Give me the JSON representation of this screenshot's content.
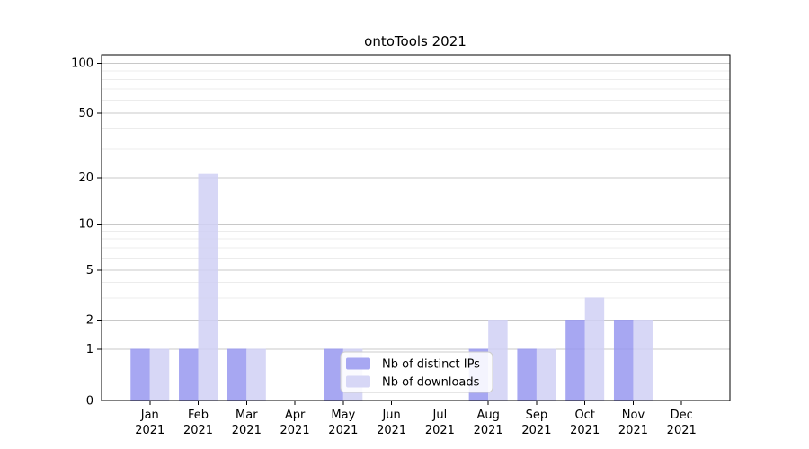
{
  "chart_data": {
    "type": "bar",
    "title": "ontoTools 2021",
    "categories": [
      "Jan 2021",
      "Feb 2021",
      "Mar 2021",
      "Apr 2021",
      "May 2021",
      "Jun 2021",
      "Jul 2021",
      "Aug 2021",
      "Sep 2021",
      "Oct 2021",
      "Nov 2021",
      "Dec 2021"
    ],
    "series": [
      {
        "name": "Nb of distinct IPs",
        "color": "#9898f0",
        "values": [
          1,
          1,
          1,
          0,
          1,
          0,
          0,
          1,
          1,
          2,
          2,
          0
        ]
      },
      {
        "name": "Nb of downloads",
        "color": "#d0d0f4",
        "values": [
          1,
          21,
          1,
          0,
          1,
          0,
          0,
          2,
          1,
          3,
          2,
          0
        ]
      }
    ],
    "y_axis": {
      "scale": "log-like",
      "tick_labels": [
        "0",
        "1",
        "2",
        "5",
        "10",
        "20",
        "50",
        "100"
      ],
      "major_ticks": [
        0,
        1,
        2,
        5,
        10,
        20,
        50,
        100
      ],
      "minor_gridlines": [
        3,
        4,
        6,
        7,
        8,
        9,
        30,
        40,
        60,
        70,
        80,
        90
      ],
      "range": [
        0,
        100
      ]
    },
    "x_axis": {
      "year_line": "2021"
    },
    "legend": {
      "position": "lower-center",
      "entries": [
        "Nb of distinct IPs",
        "Nb of downloads"
      ]
    },
    "grid": true,
    "colors": {
      "background": "#ffffff",
      "axis": "#000000",
      "major_grid": "#c8c8c8",
      "minor_grid": "#ececec",
      "legend_border": "#cccccc"
    }
  }
}
